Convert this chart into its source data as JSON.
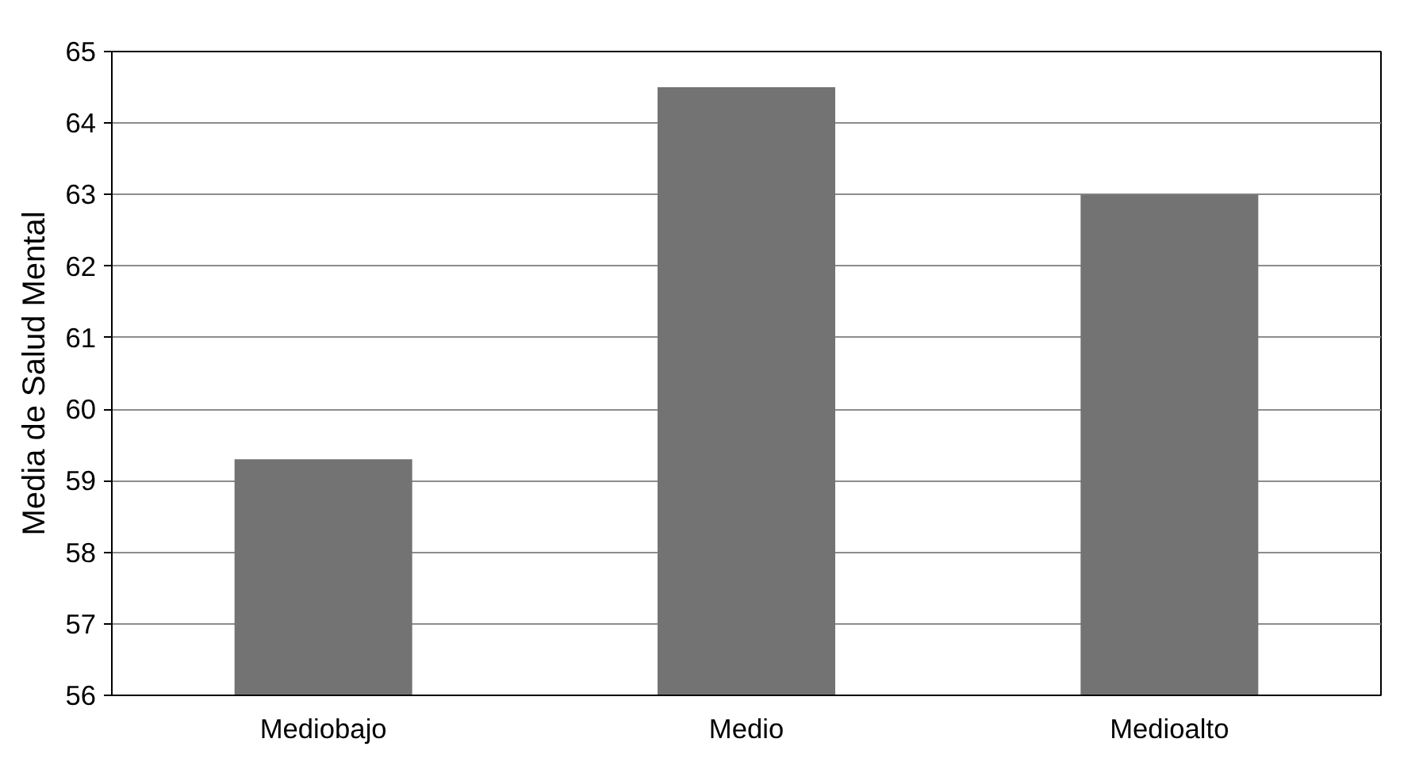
{
  "chart_data": {
    "type": "bar",
    "ylabel": "Media de Salud Mental",
    "categories": [
      "Mediobajo",
      "Medio",
      "Medioalto"
    ],
    "values": [
      59.3,
      64.5,
      63.0
    ],
    "color": "#737373",
    "ylim": [
      56,
      65
    ],
    "yticks": [
      56,
      57,
      58,
      59,
      60,
      61,
      62,
      63,
      64,
      65
    ],
    "grid": "y"
  }
}
